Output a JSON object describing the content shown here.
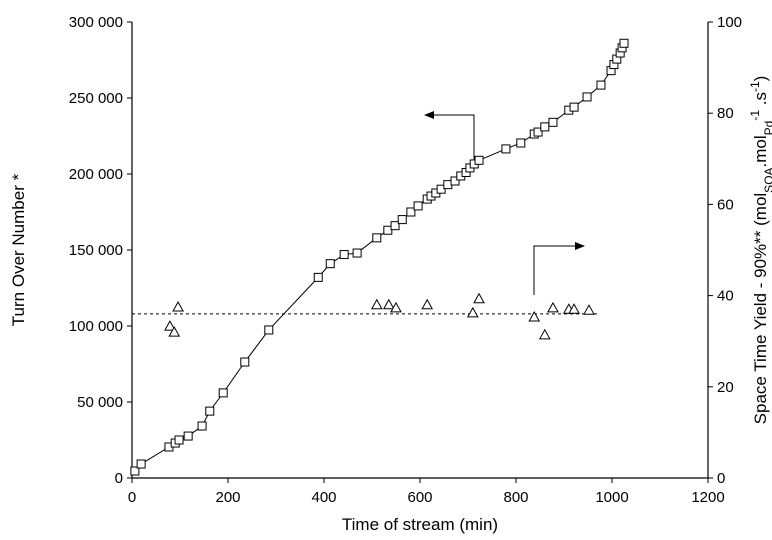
{
  "chart_data": {
    "type": "scatter",
    "x_label": "Time of stream (min)",
    "y_label": "Turn Over Number *",
    "y2_label": [
      "Space Time Yield - 90%** (mol",
      "SQA",
      ".mol",
      "Pd",
      "-1",
      " .s",
      "-1",
      ")"
    ],
    "xlim": [
      0,
      1200
    ],
    "xticks": [
      0,
      200,
      400,
      600,
      800,
      1000,
      1200
    ],
    "ylim": [
      0,
      300000
    ],
    "yticks": [
      {
        "value": 0,
        "label": "0"
      },
      {
        "value": 50000,
        "label": "50 000"
      },
      {
        "value": 100000,
        "label": "100 000"
      },
      {
        "value": 150000,
        "label": "150 000"
      },
      {
        "value": 200000,
        "label": "200 000"
      },
      {
        "value": 250000,
        "label": "250 000"
      },
      {
        "value": 300000,
        "label": "300 000"
      }
    ],
    "y2lim": [
      0,
      100
    ],
    "y2ticks": [
      0,
      20,
      40,
      60,
      80,
      100
    ],
    "series": [
      {
        "marker": "square",
        "line": true,
        "color": "#000000",
        "x": [
          6,
          19,
          77,
          90,
          98,
          117,
          146,
          162,
          190,
          235,
          285,
          388,
          413,
          442,
          469,
          510,
          533,
          548,
          563,
          581,
          596,
          615,
          623,
          633,
          644,
          658,
          673,
          685,
          696,
          704,
          713,
          723,
          779,
          810,
          838,
          846,
          860,
          877,
          910,
          921,
          948,
          977,
          998,
          1004,
          1010,
          1017,
          1021,
          1025
        ],
        "values": [
          4600,
          9200,
          20400,
          23000,
          25000,
          27600,
          34200,
          44000,
          56000,
          76300,
          97400,
          132000,
          141000,
          147000,
          148000,
          158000,
          163000,
          166000,
          170000,
          175000,
          179000,
          183500,
          185500,
          187500,
          190000,
          193000,
          195400,
          198700,
          201000,
          204000,
          206600,
          209000,
          216500,
          220400,
          226300,
          227600,
          231000,
          234000,
          242000,
          244000,
          250700,
          258500,
          268000,
          272000,
          275600,
          279600,
          283000,
          286000
        ]
      },
      {
        "marker": "triangle",
        "line": false,
        "color": "#000000",
        "axis": "y2",
        "x": [
          79,
          88,
          96,
          510,
          535,
          550,
          615,
          710,
          723,
          838,
          860,
          877,
          910,
          921,
          952
        ],
        "values": [
          33.3,
          32,
          37.5,
          38,
          38,
          37.3,
          38,
          36.2,
          39.3,
          35.3,
          31.4,
          37.3,
          37,
          37,
          36.8
        ]
      }
    ],
    "reference_line": {
      "axis": "y2",
      "value": 36,
      "x": [
        0,
        975
      ]
    }
  }
}
